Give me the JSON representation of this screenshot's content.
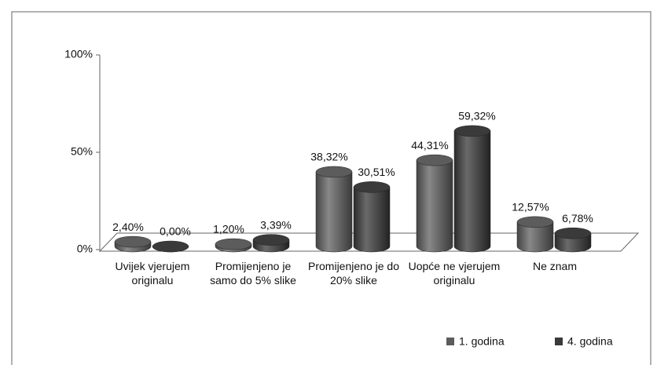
{
  "chart_data": {
    "type": "bar",
    "categories": [
      "Uvijek vjerujem originalu",
      "Promijenjeno je samo do 5% slike",
      "Promijenjeno je do 20% slike",
      "Uopće ne vjerujem originalu",
      "Ne znam"
    ],
    "series": [
      {
        "name": "1. godina",
        "color": "#5c5c5c",
        "values": [
          2.4,
          1.2,
          38.32,
          44.31,
          12.57
        ],
        "value_labels": [
          "2,40%",
          "1,20%",
          "38,32%",
          "44,31%",
          "12,57%"
        ]
      },
      {
        "name": "4. godina",
        "color": "#3a3a3a",
        "values": [
          0.0,
          3.39,
          30.51,
          59.32,
          6.78
        ],
        "value_labels": [
          "0,00%",
          "3,39%",
          "30,51%",
          "59,32%",
          "6,78%"
        ]
      }
    ],
    "ylim": [
      0,
      100
    ],
    "yticks": [
      {
        "value": 0,
        "label": "0%"
      },
      {
        "value": 50,
        "label": "50%"
      },
      {
        "value": 100,
        "label": "100%"
      }
    ],
    "legend": "bottom-right"
  }
}
